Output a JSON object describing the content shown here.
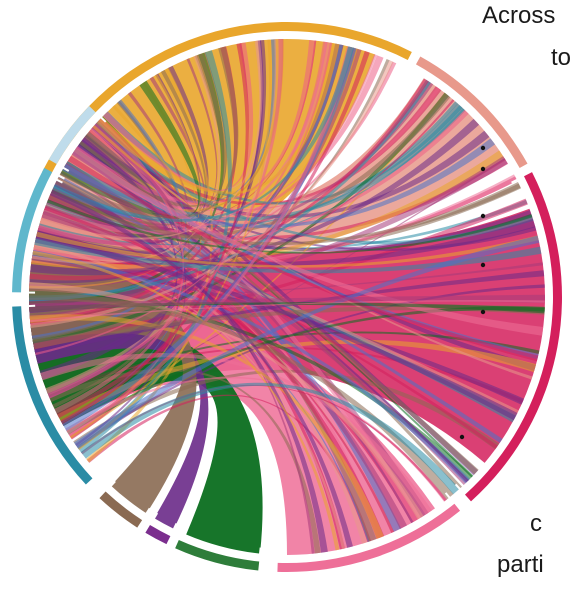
{
  "text_fragments": {
    "top_line1": "Across",
    "top_line2": "to",
    "bottom_line1": "c",
    "bottom_line2": "parti"
  },
  "chord_diagram": {
    "groups": [
      {
        "color": "#E9A62C"
      },
      {
        "color": "#E8998B"
      },
      {
        "color": "#D41F5C"
      },
      {
        "color": "#EE6F98"
      },
      {
        "color": "#2E7D3A"
      },
      {
        "color": "#7B2E8E"
      },
      {
        "color": "#8A6A52"
      },
      {
        "color": "#2A8CA5"
      },
      {
        "color": "#5FB7CC"
      },
      {
        "color": "#BFDCEB"
      }
    ],
    "ribbon_palette": [
      "#E9A62C",
      "#E8998B",
      "#D41F5C",
      "#EE6F98",
      "#EC5F86",
      "#0B6E1F",
      "#6A2A88",
      "#8A6A52",
      "#2A8CA5",
      "#4A73C9",
      "#A63A7A"
    ]
  }
}
